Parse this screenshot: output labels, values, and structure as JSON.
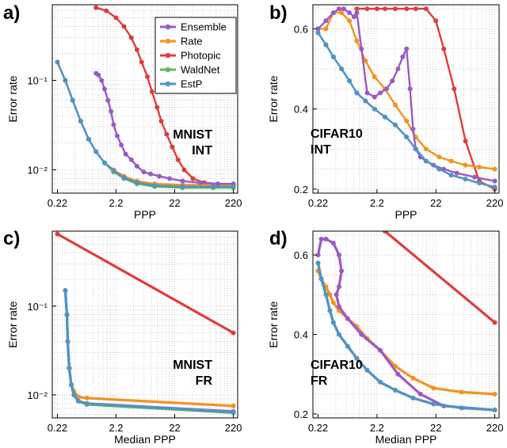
{
  "series_colors": {
    "Ensemble": "#9b59c6",
    "Rate": "#f5921e",
    "Photopic": "#e03c3c",
    "WaldNet": "#5bb85b",
    "EstP": "#4f93c8"
  },
  "legend": [
    "Ensemble",
    "Rate",
    "Photopic",
    "WaldNet",
    "EstP"
  ],
  "chart_data": [
    {
      "panel": "a)",
      "type": "line",
      "annotation": [
        "MNIST",
        "INT"
      ],
      "xlabel": "PPP",
      "ylabel": "Error rate",
      "xscale": "log",
      "yscale": "log",
      "xlim": [
        0.18,
        260
      ],
      "ylim": [
        0.0055,
        0.7
      ],
      "xticks": [
        0.22,
        2.2,
        22,
        220
      ],
      "xticklabels": [
        "0.22",
        "2.2",
        "22",
        "220"
      ],
      "yticks": [
        0.01,
        0.1
      ],
      "yticklabels": [
        "10⁻²",
        "10⁻¹"
      ],
      "grid": true,
      "legend_position": "top-right",
      "series": [
        {
          "name": "Ensemble",
          "x": [
            1.0,
            1.1,
            1.25,
            1.4,
            1.6,
            1.8,
            2.0,
            2.3,
            2.7,
            3.2,
            4.0,
            5.0,
            6.5,
            8.5,
            12,
            18,
            30,
            60,
            120,
            220
          ],
          "y": [
            0.12,
            0.115,
            0.1,
            0.08,
            0.06,
            0.045,
            0.032,
            0.024,
            0.019,
            0.015,
            0.013,
            0.011,
            0.0095,
            0.009,
            0.0085,
            0.008,
            0.0075,
            0.0072,
            0.007,
            0.007
          ]
        },
        {
          "name": "Rate",
          "x": [
            0.22,
            0.3,
            0.4,
            0.55,
            0.75,
            1.0,
            1.4,
            2.0,
            3.0,
            5.0,
            10,
            30,
            100,
            220
          ],
          "y": [
            0.16,
            0.1,
            0.06,
            0.035,
            0.022,
            0.016,
            0.012,
            0.01,
            0.0085,
            0.0075,
            0.007,
            0.0068,
            0.0068,
            0.0068
          ]
        },
        {
          "name": "Photopic",
          "x": [
            1.0,
            1.5,
            2.2,
            3.0,
            4.0,
            5.0,
            6.0,
            7.5,
            9.0,
            11,
            13,
            16,
            20,
            25,
            32,
            45,
            70,
            120,
            220
          ],
          "y": [
            0.65,
            0.6,
            0.5,
            0.4,
            0.3,
            0.22,
            0.16,
            0.11,
            0.075,
            0.05,
            0.035,
            0.025,
            0.018,
            0.013,
            0.01,
            0.008,
            0.0072,
            0.007,
            0.0068
          ]
        },
        {
          "name": "WaldNet",
          "x": [
            0.22,
            0.3,
            0.4,
            0.55,
            0.75,
            1.0,
            1.4,
            2.0,
            3.0,
            5.0,
            10,
            30,
            100,
            220
          ],
          "y": [
            0.16,
            0.1,
            0.06,
            0.035,
            0.022,
            0.016,
            0.012,
            0.0095,
            0.008,
            0.007,
            0.0065,
            0.0063,
            0.0063,
            0.0063
          ]
        },
        {
          "name": "EstP",
          "x": [
            0.22,
            0.3,
            0.4,
            0.55,
            0.75,
            1.0,
            1.4,
            2.0,
            3.0,
            5.0,
            10,
            30,
            100,
            220
          ],
          "y": [
            0.16,
            0.1,
            0.06,
            0.035,
            0.022,
            0.016,
            0.012,
            0.0098,
            0.0082,
            0.0072,
            0.0067,
            0.0065,
            0.0065,
            0.0065
          ]
        }
      ]
    },
    {
      "panel": "b)",
      "type": "line",
      "annotation": [
        "CIFAR10",
        "INT"
      ],
      "xlabel": "PPP",
      "ylabel": "Error rate",
      "xscale": "log",
      "yscale": "linear",
      "xlim": [
        0.18,
        260
      ],
      "ylim": [
        0.19,
        0.66
      ],
      "xticks": [
        0.22,
        2.2,
        22,
        220
      ],
      "xticklabels": [
        "0.22",
        "2.2",
        "22",
        "220"
      ],
      "yticks": [
        0.2,
        0.4,
        0.6
      ],
      "yticklabels": [
        "0.2",
        "0.4",
        "0.6"
      ],
      "grid": true,
      "series": [
        {
          "name": "Ensemble",
          "x": [
            0.22,
            0.3,
            0.4,
            0.5,
            0.6,
            0.75,
            0.9,
            1.0,
            1.2,
            1.5,
            2.0,
            2.5,
            3.2,
            4.0,
            5.0,
            6.0,
            7.0,
            8.0,
            9.0,
            10,
            12,
            15,
            20,
            30,
            50,
            100,
            220
          ],
          "y": [
            0.6,
            0.62,
            0.64,
            0.65,
            0.65,
            0.64,
            0.63,
            0.64,
            0.55,
            0.44,
            0.43,
            0.44,
            0.45,
            0.47,
            0.5,
            0.53,
            0.55,
            0.45,
            0.35,
            0.3,
            0.28,
            0.27,
            0.26,
            0.25,
            0.24,
            0.23,
            0.22
          ]
        },
        {
          "name": "Rate",
          "x": [
            0.22,
            0.3,
            0.4,
            0.55,
            0.75,
            1.0,
            1.4,
            2.0,
            3.0,
            4.5,
            7.0,
            10,
            15,
            25,
            40,
            70,
            120,
            220
          ],
          "y": [
            0.6,
            0.6,
            0.64,
            0.64,
            0.62,
            0.57,
            0.52,
            0.48,
            0.45,
            0.41,
            0.37,
            0.33,
            0.3,
            0.28,
            0.27,
            0.26,
            0.255,
            0.25
          ]
        },
        {
          "name": "Photopic",
          "x": [
            1.0,
            1.5,
            2.2,
            3.0,
            4.5,
            7.0,
            10,
            15,
            22,
            30,
            45,
            70,
            120,
            220
          ],
          "y": [
            0.65,
            0.65,
            0.65,
            0.65,
            0.65,
            0.65,
            0.65,
            0.65,
            0.62,
            0.55,
            0.45,
            0.32,
            0.22,
            0.2
          ]
        },
        {
          "name": "WaldNet",
          "x": [
            0.22,
            0.3,
            0.4,
            0.55,
            0.75,
            1.0,
            1.4,
            2.0,
            3.0,
            4.5,
            7.0,
            10,
            15,
            25,
            40,
            70,
            120,
            220
          ],
          "y": [
            0.59,
            0.56,
            0.53,
            0.5,
            0.47,
            0.44,
            0.42,
            0.4,
            0.38,
            0.36,
            0.33,
            0.3,
            0.27,
            0.25,
            0.235,
            0.225,
            0.215,
            0.205
          ]
        },
        {
          "name": "EstP",
          "x": [
            0.22,
            0.3,
            0.4,
            0.55,
            0.75,
            1.0,
            1.4,
            2.0,
            3.0,
            4.5,
            7.0,
            10,
            15,
            25,
            40,
            70,
            120,
            220
          ],
          "y": [
            0.59,
            0.56,
            0.53,
            0.5,
            0.47,
            0.44,
            0.42,
            0.4,
            0.38,
            0.36,
            0.33,
            0.3,
            0.27,
            0.25,
            0.235,
            0.225,
            0.215,
            0.205
          ]
        }
      ]
    },
    {
      "panel": "c)",
      "type": "line",
      "annotation": [
        "MNIST",
        "FR"
      ],
      "xlabel": "Median PPP",
      "ylabel": "Error rate",
      "xscale": "log",
      "yscale": "log",
      "xlim": [
        0.18,
        260
      ],
      "ylim": [
        0.0055,
        0.7
      ],
      "xticks": [
        0.22,
        2.2,
        22,
        220
      ],
      "xticklabels": [
        "0.22",
        "2.2",
        "22",
        "220"
      ],
      "yticks": [
        0.01,
        0.1
      ],
      "yticklabels": [
        "10⁻²",
        "10⁻¹"
      ],
      "grid": true,
      "series": [
        {
          "name": "Ensemble",
          "x": [
            0.3,
            0.32,
            0.33,
            0.35,
            0.38,
            0.42,
            0.5,
            0.7,
            220
          ],
          "y": [
            0.15,
            0.08,
            0.04,
            0.02,
            0.013,
            0.01,
            0.0085,
            0.008,
            0.0065
          ]
        },
        {
          "name": "Rate",
          "x": [
            0.3,
            0.32,
            0.33,
            0.35,
            0.38,
            0.42,
            0.5,
            0.7,
            220
          ],
          "y": [
            0.15,
            0.08,
            0.04,
            0.02,
            0.013,
            0.011,
            0.0095,
            0.0092,
            0.0075
          ]
        },
        {
          "name": "Photopic",
          "x": [
            0.22,
            220
          ],
          "y": [
            0.65,
            0.05
          ]
        },
        {
          "name": "WaldNet",
          "x": [
            0.3,
            0.32,
            0.33,
            0.35,
            0.38,
            0.42,
            0.5,
            0.7,
            220
          ],
          "y": [
            0.15,
            0.08,
            0.04,
            0.02,
            0.013,
            0.01,
            0.0085,
            0.0078,
            0.0063
          ]
        },
        {
          "name": "EstP",
          "x": [
            0.3,
            0.32,
            0.33,
            0.35,
            0.38,
            0.42,
            0.5,
            0.7,
            220
          ],
          "y": [
            0.15,
            0.08,
            0.04,
            0.02,
            0.013,
            0.01,
            0.0085,
            0.008,
            0.0064
          ]
        }
      ]
    },
    {
      "panel": "d)",
      "type": "line",
      "annotation": [
        "CIFAR10",
        "FR"
      ],
      "xlabel": "Median PPP",
      "ylabel": "Error rate",
      "xscale": "log",
      "yscale": "linear",
      "xlim": [
        0.18,
        260
      ],
      "ylim": [
        0.19,
        0.66
      ],
      "xticks": [
        0.22,
        2.2,
        22,
        220
      ],
      "xticklabels": [
        "0.22",
        "2.2",
        "22",
        "220"
      ],
      "yticks": [
        0.2,
        0.4,
        0.6
      ],
      "yticklabels": [
        "0.2",
        "0.4",
        "0.6"
      ],
      "grid": true,
      "series": [
        {
          "name": "Ensemble",
          "x": [
            0.22,
            0.25,
            0.3,
            0.4,
            0.5,
            0.55,
            0.5,
            0.45,
            0.5,
            0.7,
            1.2,
            2.5,
            5,
            12,
            30,
            220
          ],
          "y": [
            0.6,
            0.64,
            0.64,
            0.63,
            0.6,
            0.56,
            0.52,
            0.5,
            0.47,
            0.44,
            0.4,
            0.36,
            0.3,
            0.25,
            0.22,
            0.21
          ]
        },
        {
          "name": "Rate",
          "x": [
            0.22,
            0.25,
            0.3,
            0.35,
            0.4,
            0.5,
            0.7,
            1.0,
            1.5,
            2.5,
            4.5,
            9,
            20,
            60,
            220
          ],
          "y": [
            0.56,
            0.54,
            0.52,
            0.5,
            0.48,
            0.46,
            0.44,
            0.42,
            0.39,
            0.36,
            0.32,
            0.29,
            0.265,
            0.255,
            0.25
          ]
        },
        {
          "name": "Photopic",
          "x": [
            3.0,
            220
          ],
          "y": [
            0.66,
            0.43
          ]
        },
        {
          "name": "WaldNet",
          "x": [
            0.22,
            0.25,
            0.3,
            0.35,
            0.4,
            0.5,
            0.7,
            1.0,
            1.5,
            2.5,
            4.5,
            9,
            20,
            60,
            220
          ],
          "y": [
            0.58,
            0.54,
            0.5,
            0.46,
            0.43,
            0.4,
            0.37,
            0.34,
            0.31,
            0.28,
            0.26,
            0.24,
            0.225,
            0.215,
            0.21
          ]
        },
        {
          "name": "EstP",
          "x": [
            0.22,
            0.25,
            0.3,
            0.35,
            0.4,
            0.5,
            0.7,
            1.0,
            1.5,
            2.5,
            4.5,
            9,
            20,
            60,
            220
          ],
          "y": [
            0.58,
            0.54,
            0.5,
            0.46,
            0.43,
            0.4,
            0.37,
            0.34,
            0.31,
            0.28,
            0.26,
            0.24,
            0.225,
            0.215,
            0.21
          ]
        }
      ]
    }
  ]
}
